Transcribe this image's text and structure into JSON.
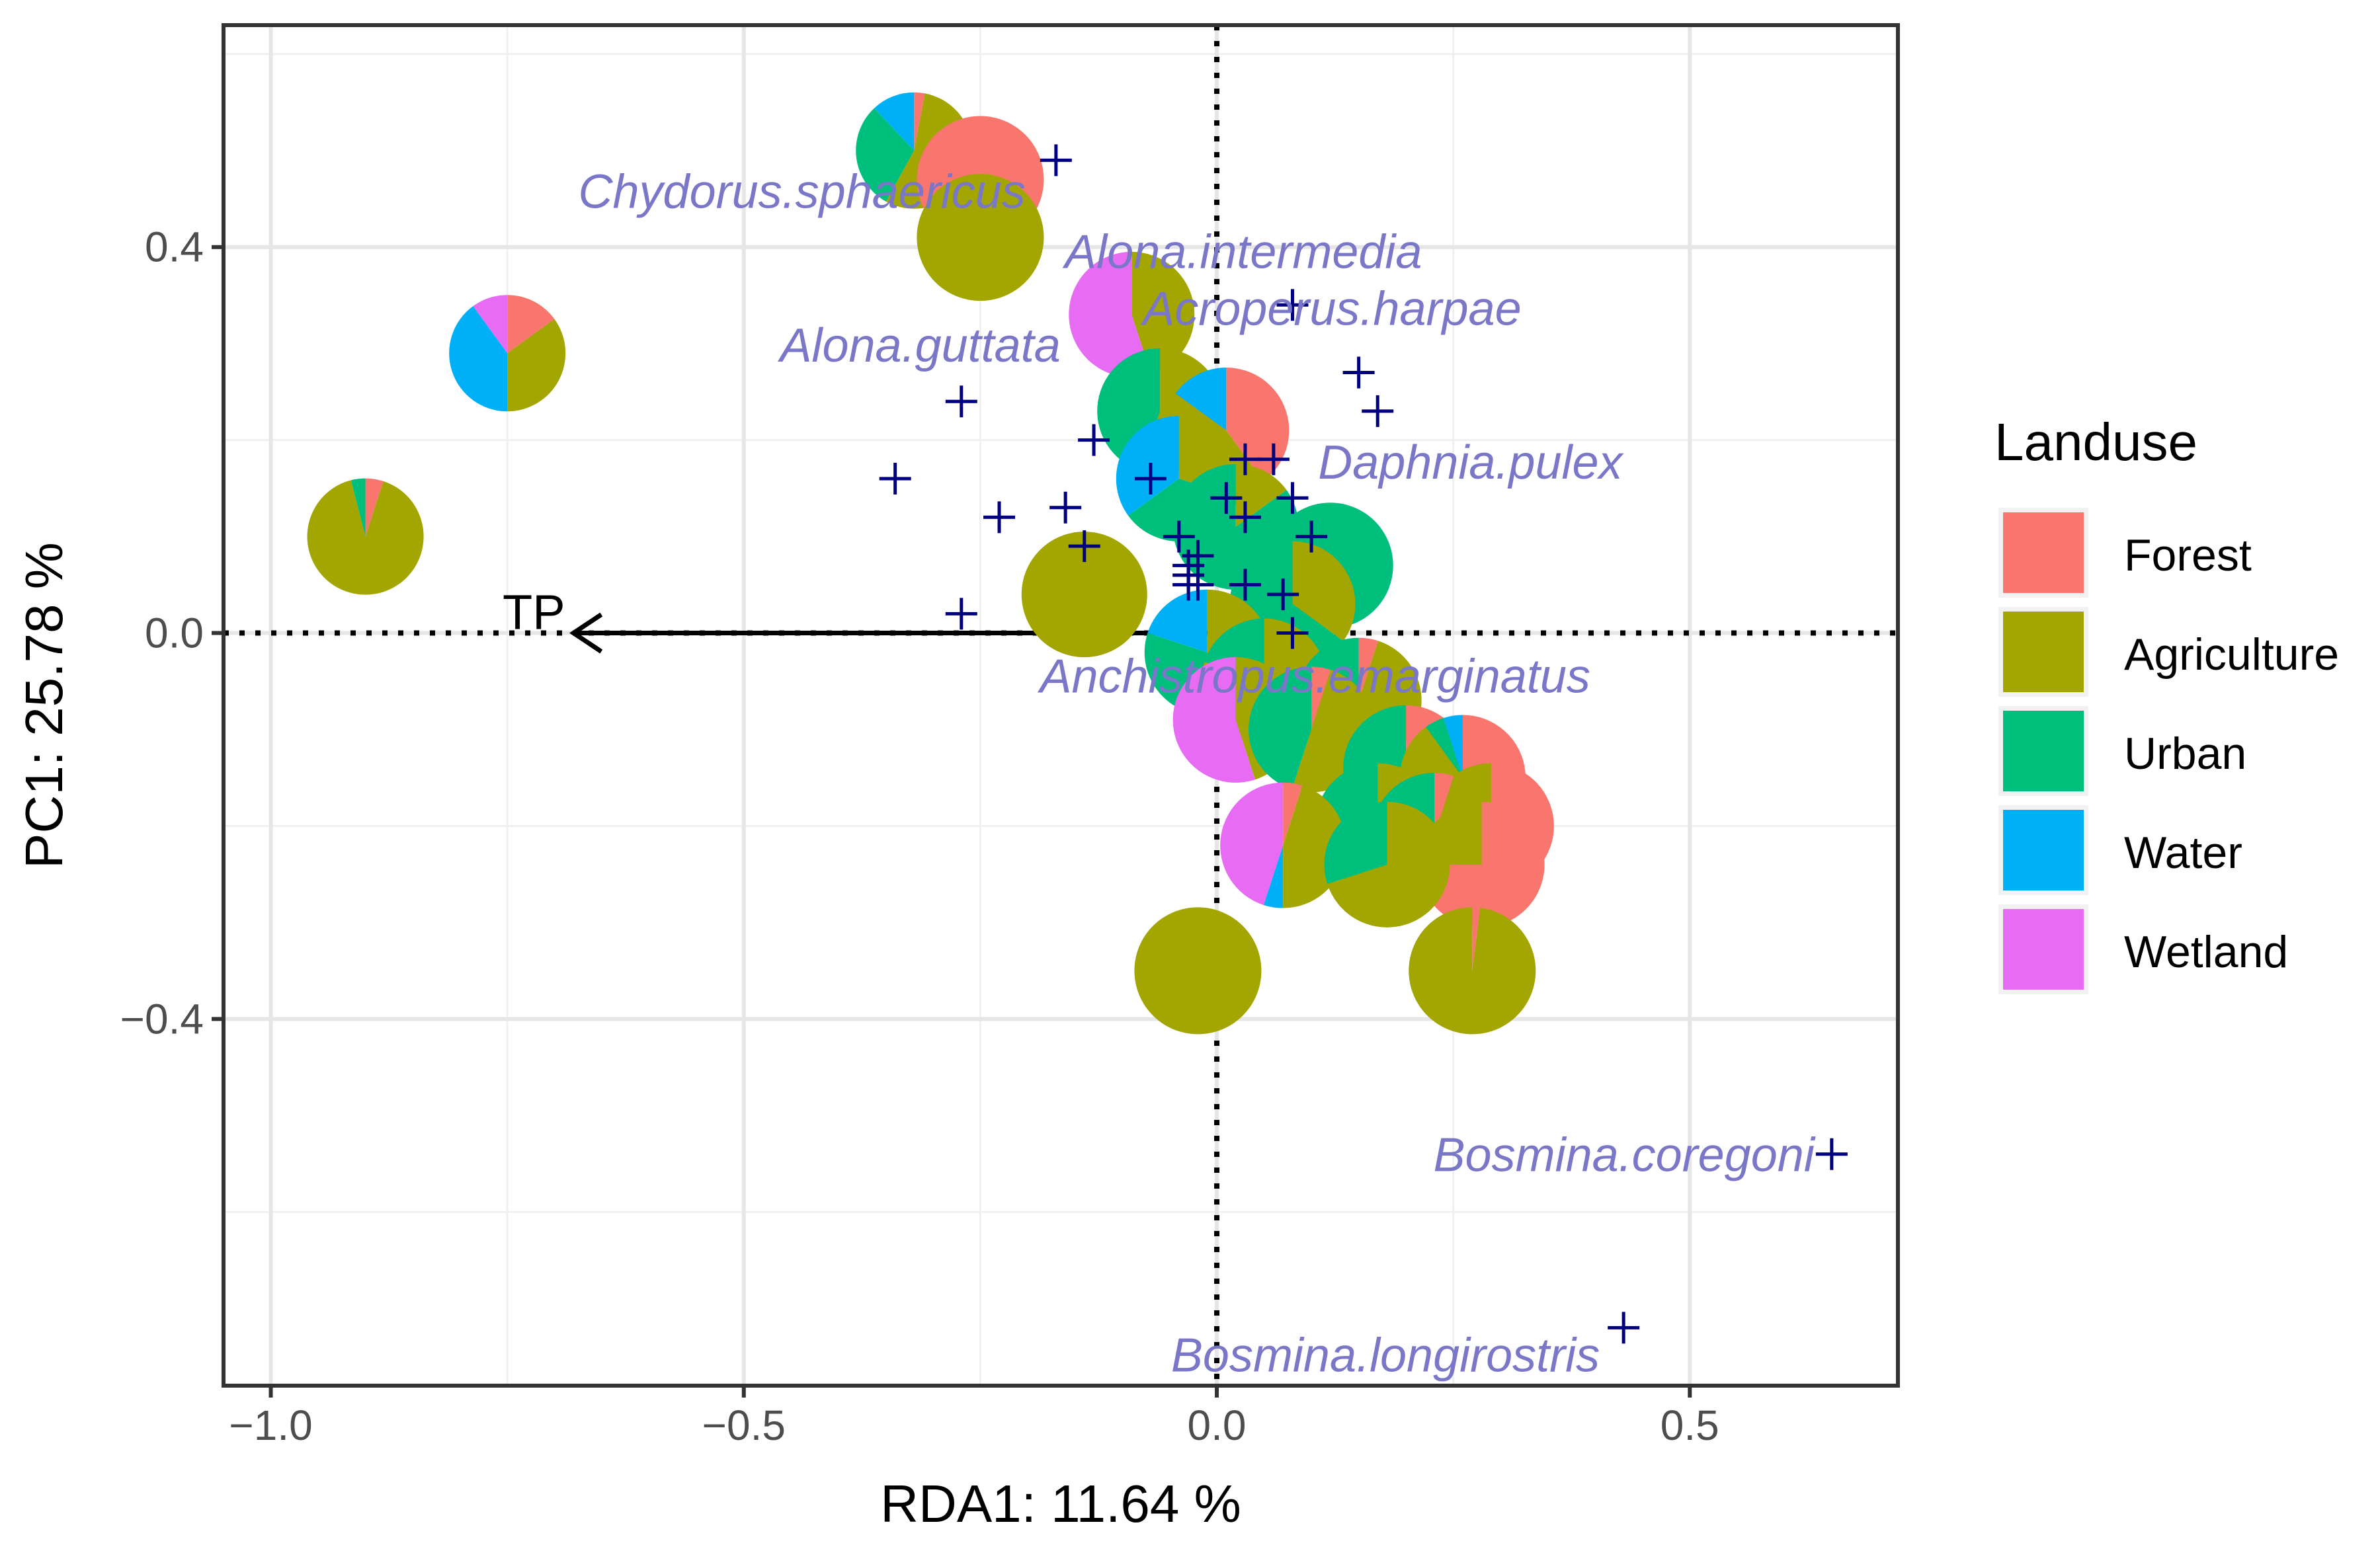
{
  "chart_data": {
    "type": "scatter",
    "xlabel": "RDA1: 11.64 %",
    "ylabel": "PC1: 25.78 %",
    "xlim": [
      -1.05,
      0.72
    ],
    "ylim": [
      -0.78,
      0.63
    ],
    "x_ticks": [
      -1.0,
      -0.5,
      0.0,
      0.5
    ],
    "x_tick_labels": [
      "−1.0",
      "−0.5",
      "0.0",
      "0.5"
    ],
    "y_ticks": [
      -0.4,
      0.0,
      0.4
    ],
    "y_tick_labels": [
      "−0.4",
      "0.0",
      "0.4"
    ],
    "grid": true,
    "reference_lines": {
      "x": 0,
      "y": 0,
      "style": "dotted"
    },
    "landuse_colors": {
      "Forest": "#F8766D",
      "Agriculture": "#A3A500",
      "Urban": "#00BF7D",
      "Water": "#00B0F6",
      "Wetland": "#E76BF3"
    },
    "legend": {
      "title": "Landuse",
      "position": "right",
      "entries": [
        "Forest",
        "Agriculture",
        "Urban",
        "Water",
        "Wetland"
      ]
    },
    "vector": {
      "label": "TP",
      "from": [
        0,
        0
      ],
      "to": [
        -0.68,
        0
      ]
    },
    "species": [
      {
        "name": "Chydorus.sphaericus",
        "x": -0.17,
        "y": 0.49
      },
      {
        "name": "Alona.intermedia",
        "x": 0.08,
        "y": 0.34
      },
      {
        "name": "Acroperus.harpae",
        "x": 0.15,
        "y": 0.27
      },
      {
        "name": "Alona.guttata",
        "x": -0.27,
        "y": 0.24
      },
      {
        "name": "Daphnia.pulex",
        "x": 0.17,
        "y": 0.23
      },
      {
        "name": "Anchistropus.emarginatus",
        "x": 0.08,
        "y": 0.0
      },
      {
        "name": "Bosmina.coregoni",
        "x": 0.65,
        "y": -0.54
      },
      {
        "name": "Bosmina.longirostris",
        "x": 0.43,
        "y": -0.72
      }
    ],
    "other_species_points": [
      [
        -0.34,
        0.16
      ],
      [
        -0.23,
        0.12
      ],
      [
        -0.16,
        0.13
      ],
      [
        -0.13,
        0.2
      ],
      [
        -0.14,
        0.09
      ],
      [
        -0.27,
        0.02
      ],
      [
        -0.07,
        0.16
      ],
      [
        -0.04,
        0.1
      ],
      [
        -0.03,
        0.07
      ],
      [
        -0.02,
        0.08
      ],
      [
        -0.02,
        0.05
      ],
      [
        -0.03,
        0.06
      ],
      [
        0.01,
        0.14
      ],
      [
        0.03,
        0.12
      ],
      [
        0.03,
        0.18
      ],
      [
        0.06,
        0.18
      ],
      [
        0.08,
        0.14
      ],
      [
        0.1,
        0.1
      ],
      [
        0.03,
        0.05
      ],
      [
        0.07,
        0.04
      ],
      [
        -0.03,
        0.05
      ]
    ],
    "sites": [
      {
        "x": -0.9,
        "y": 0.1,
        "r": "small",
        "Forest": 0.05,
        "Agriculture": 0.91,
        "Urban": 0.04,
        "Water": 0,
        "Wetland": 0
      },
      {
        "x": -0.75,
        "y": 0.29,
        "r": "small",
        "Forest": 0.15,
        "Agriculture": 0.35,
        "Urban": 0,
        "Water": 0.4,
        "Wetland": 0.1
      },
      {
        "x": -0.32,
        "y": 0.5,
        "r": "small",
        "Forest": 0.03,
        "Agriculture": 0.55,
        "Urban": 0.3,
        "Water": 0.12,
        "Wetland": 0
      },
      {
        "x": -0.25,
        "y": 0.47,
        "r": "large",
        "Forest": 1.0,
        "Agriculture": 0,
        "Urban": 0,
        "Water": 0,
        "Wetland": 0
      },
      {
        "x": -0.25,
        "y": 0.41,
        "r": "large",
        "Forest": 0,
        "Agriculture": 1.0,
        "Urban": 0,
        "Water": 0,
        "Wetland": 0
      },
      {
        "x": -0.09,
        "y": 0.33,
        "r": "medium",
        "Forest": 0,
        "Agriculture": 0.45,
        "Urban": 0,
        "Water": 0,
        "Wetland": 0.55
      },
      {
        "x": -0.06,
        "y": 0.23,
        "r": "medium",
        "Forest": 0,
        "Agriculture": 0.55,
        "Urban": 0.45,
        "Water": 0,
        "Wetland": 0
      },
      {
        "x": 0.01,
        "y": 0.21,
        "r": "medium",
        "Forest": 0.4,
        "Agriculture": 0.45,
        "Urban": 0,
        "Water": 0.15,
        "Wetland": 0
      },
      {
        "x": -0.04,
        "y": 0.16,
        "r": "medium",
        "Forest": 0,
        "Agriculture": 0.3,
        "Urban": 0.35,
        "Water": 0.35,
        "Wetland": 0
      },
      {
        "x": 0.02,
        "y": 0.11,
        "r": "medium",
        "Forest": 0,
        "Agriculture": 0.15,
        "Urban": 0.85,
        "Water": 0,
        "Wetland": 0
      },
      {
        "x": 0.12,
        "y": 0.07,
        "r": "medium",
        "Forest": 0,
        "Agriculture": 0,
        "Urban": 1.0,
        "Water": 0,
        "Wetland": 0
      },
      {
        "x": -0.14,
        "y": 0.04,
        "r": "medium",
        "Forest": 0,
        "Agriculture": 1.0,
        "Urban": 0,
        "Water": 0,
        "Wetland": 0
      },
      {
        "x": 0.08,
        "y": 0.03,
        "r": "medium",
        "Forest": 0,
        "Agriculture": 0.35,
        "Urban": 0.65,
        "Water": 0,
        "Wetland": 0
      },
      {
        "x": -0.01,
        "y": -0.02,
        "r": "medium",
        "Forest": 0,
        "Agriculture": 0.45,
        "Urban": 0.35,
        "Water": 0.2,
        "Wetland": 0
      },
      {
        "x": 0.05,
        "y": -0.05,
        "r": "medium",
        "Forest": 0,
        "Agriculture": 0.8,
        "Urban": 0.2,
        "Water": 0,
        "Wetland": 0
      },
      {
        "x": 0.15,
        "y": -0.07,
        "r": "medium",
        "Forest": 0.05,
        "Agriculture": 0.75,
        "Urban": 0.2,
        "Water": 0,
        "Wetland": 0
      },
      {
        "x": 0.02,
        "y": -0.09,
        "r": "medium",
        "Forest": 0,
        "Agriculture": 0.45,
        "Urban": 0,
        "Water": 0,
        "Wetland": 0.55
      },
      {
        "x": 0.1,
        "y": -0.1,
        "r": "medium",
        "Forest": 0.05,
        "Agriculture": 0.5,
        "Urban": 0.45,
        "Water": 0,
        "Wetland": 0
      },
      {
        "x": 0.2,
        "y": -0.14,
        "r": "medium",
        "Forest": 0.1,
        "Agriculture": 0.4,
        "Urban": 0.5,
        "Water": 0,
        "Wetland": 0
      },
      {
        "x": 0.26,
        "y": -0.15,
        "r": "medium",
        "Forest": 0.7,
        "Agriculture": 0.2,
        "Urban": 0.05,
        "Water": 0.05,
        "Wetland": 0
      },
      {
        "x": 0.29,
        "y": -0.2,
        "r": "medium",
        "Forest": 0.7,
        "Agriculture": 0.3,
        "Urban": 0,
        "Water": 0,
        "Wetland": 0
      },
      {
        "x": 0.17,
        "y": -0.2,
        "r": "medium",
        "Forest": 0,
        "Agriculture": 0.55,
        "Urban": 0.45,
        "Water": 0,
        "Wetland": 0
      },
      {
        "x": 0.23,
        "y": -0.21,
        "r": "medium",
        "Forest": 0.05,
        "Agriculture": 0.7,
        "Urban": 0.25,
        "Water": 0,
        "Wetland": 0
      },
      {
        "x": 0.07,
        "y": -0.22,
        "r": "medium",
        "Forest": 0.05,
        "Agriculture": 0.45,
        "Urban": 0,
        "Water": 0.05,
        "Wetland": 0.45
      },
      {
        "x": 0.28,
        "y": -0.24,
        "r": "medium",
        "Forest": 0.75,
        "Agriculture": 0.25,
        "Urban": 0,
        "Water": 0,
        "Wetland": 0
      },
      {
        "x": 0.18,
        "y": -0.24,
        "r": "medium",
        "Forest": 0,
        "Agriculture": 0.7,
        "Urban": 0.3,
        "Water": 0,
        "Wetland": 0
      },
      {
        "x": -0.02,
        "y": -0.35,
        "r": "large",
        "Forest": 0,
        "Agriculture": 1.0,
        "Urban": 0,
        "Water": 0,
        "Wetland": 0
      },
      {
        "x": 0.27,
        "y": -0.35,
        "r": "large",
        "Forest": 0.02,
        "Agriculture": 0.98,
        "Urban": 0,
        "Water": 0,
        "Wetland": 0
      }
    ]
  }
}
